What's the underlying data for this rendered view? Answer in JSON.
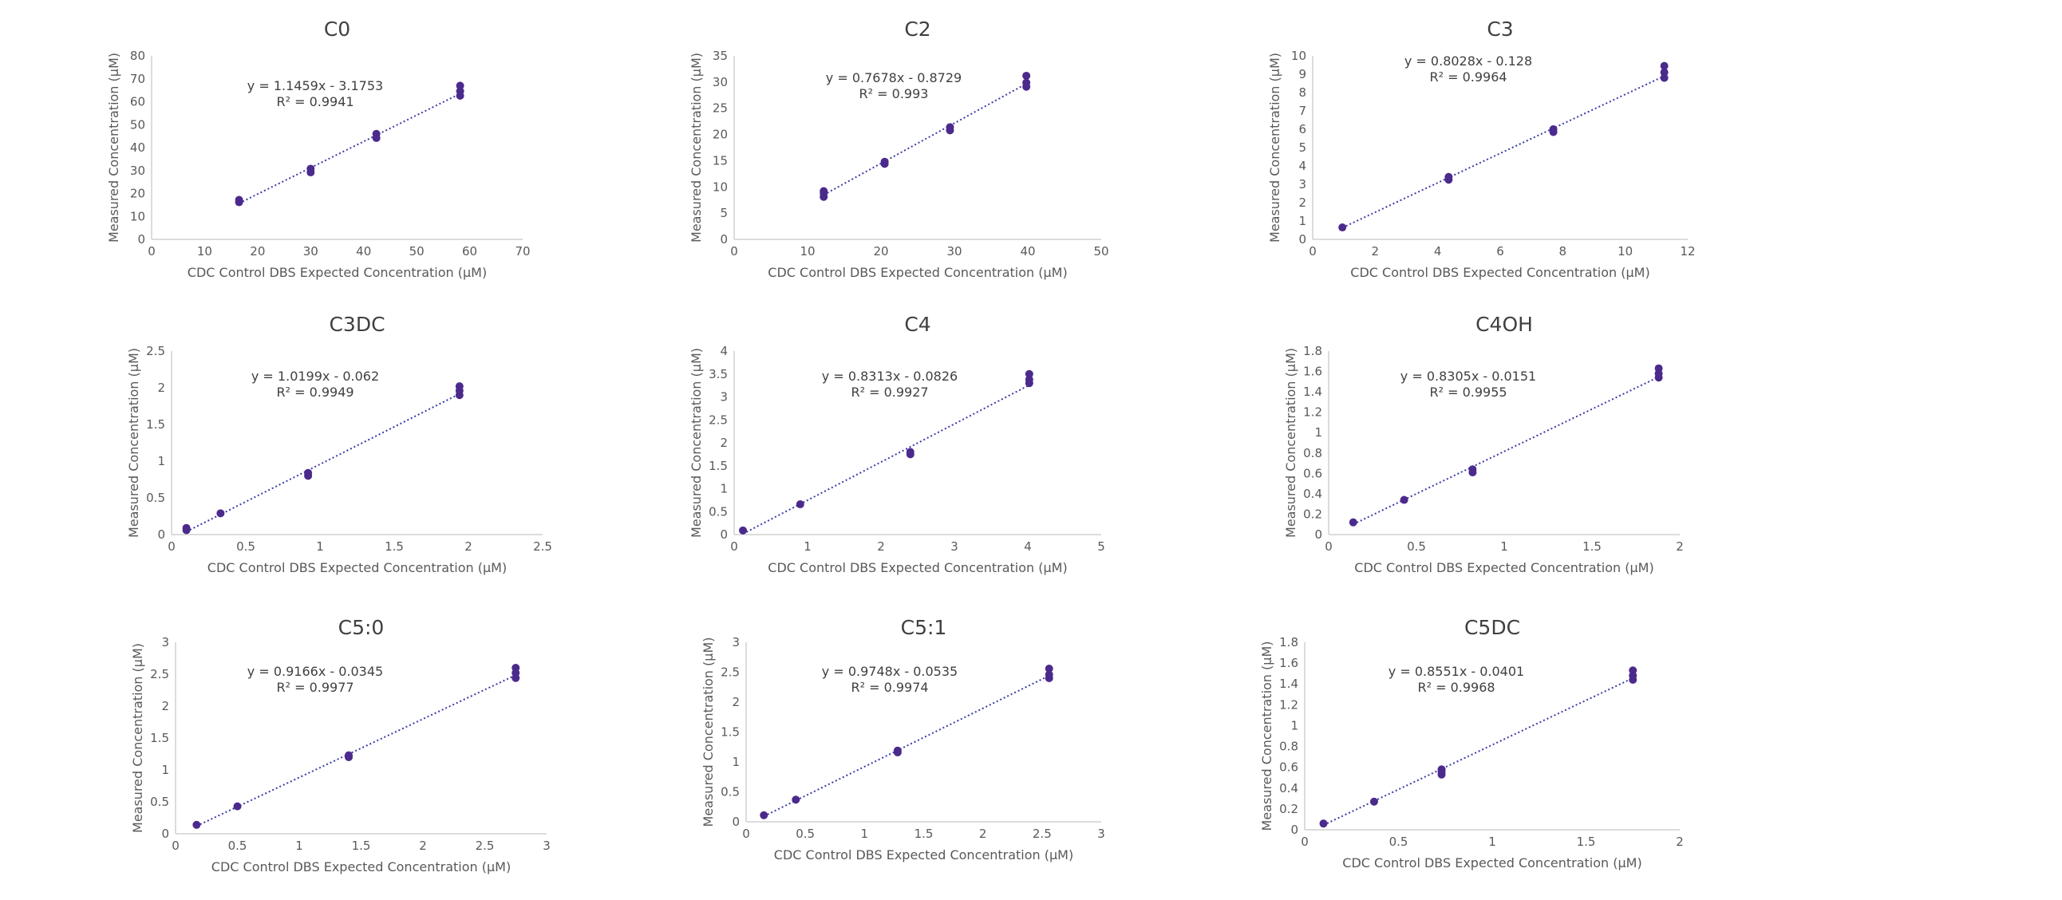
{
  "chart_data": [
    {
      "type": "scatter",
      "title": "C0",
      "xlabel": "CDC Control DBS Expected Concentration (µM)",
      "ylabel": "Measured Concentration (µM)",
      "xlim": [
        0,
        70
      ],
      "ylim": [
        0,
        80
      ],
      "xticks": [
        "0",
        "10",
        "20",
        "30",
        "40",
        "50",
        "60",
        "70"
      ],
      "yticks": [
        "0",
        "10",
        "20",
        "30",
        "40",
        "50",
        "60",
        "70",
        "80"
      ],
      "series": [
        {
          "x": [
            16.5,
            16.5,
            30,
            30,
            42.4,
            42.4,
            58.2,
            58.2,
            58.2
          ],
          "y": [
            16.2,
            17.2,
            29.2,
            30.8,
            44.2,
            46.0,
            62.6,
            64.6,
            67.0
          ]
        }
      ],
      "trendline": {
        "slope": 1.1459,
        "intercept": -3.1753,
        "equation": "y = 1.1459x - 3.1753",
        "r2": "R² = 0.9941"
      },
      "grid": false,
      "legend": "none"
    },
    {
      "type": "scatter",
      "title": "C2",
      "xlabel": "CDC Control DBS Expected Concentration (µM)",
      "ylabel": "Measured Concentration (µM)",
      "xlim": [
        0,
        50
      ],
      "ylim": [
        0,
        35
      ],
      "xticks": [
        "0",
        "10",
        "20",
        "30",
        "40",
        "50"
      ],
      "yticks": [
        "0",
        "5",
        "10",
        "15",
        "20",
        "25",
        "30",
        "35"
      ],
      "series": [
        {
          "x": [
            12.2,
            12.2,
            12.2,
            20.5,
            20.5,
            29.4,
            29.4,
            39.8,
            39.8,
            39.8
          ],
          "y": [
            8.1,
            8.8,
            9.2,
            14.4,
            14.8,
            20.8,
            21.4,
            29.1,
            29.9,
            31.2
          ]
        }
      ],
      "trendline": {
        "slope": 0.7678,
        "intercept": -0.8729,
        "equation": "y = 0.7678x - 0.8729",
        "r2": "R² = 0.993"
      },
      "grid": false,
      "legend": "none"
    },
    {
      "type": "scatter",
      "title": "C3",
      "xlabel": "CDC Control DBS Expected Concentration (µM)",
      "ylabel": "Measured Concentration (µM)",
      "xlim": [
        0,
        12
      ],
      "ylim": [
        0,
        10
      ],
      "xticks": [
        "0",
        "2",
        "4",
        "6",
        "8",
        "10",
        "12"
      ],
      "yticks": [
        "0",
        "1",
        "2",
        "3",
        "4",
        "5",
        "6",
        "7",
        "8",
        "9",
        "10"
      ],
      "series": [
        {
          "x": [
            0.95,
            4.35,
            4.35,
            7.7,
            7.7,
            11.25,
            11.25,
            11.25
          ],
          "y": [
            0.65,
            3.25,
            3.4,
            5.85,
            6.0,
            8.8,
            9.1,
            9.45
          ]
        }
      ],
      "trendline": {
        "slope": 0.8028,
        "intercept": -0.128,
        "equation": "y = 0.8028x - 0.128",
        "r2": "R² = 0.9964"
      },
      "grid": false,
      "legend": "none"
    },
    {
      "type": "scatter",
      "title": "C3DC",
      "xlabel": "CDC Control DBS Expected Concentration (µM)",
      "ylabel": "Measured Concentration (µM)",
      "xlim": [
        0,
        2.5
      ],
      "ylim": [
        0,
        2.5
      ],
      "xticks": [
        "0",
        "0.5",
        "1",
        "1.5",
        "2",
        "2.5"
      ],
      "yticks": [
        "0",
        "0.5",
        "1",
        "1.5",
        "2",
        "2.5"
      ],
      "series": [
        {
          "x": [
            0.1,
            0.1,
            0.33,
            0.92,
            0.92,
            1.94,
            1.94,
            1.94
          ],
          "y": [
            0.06,
            0.09,
            0.29,
            0.8,
            0.84,
            1.9,
            1.96,
            2.02
          ]
        }
      ],
      "trendline": {
        "slope": 1.0199,
        "intercept": -0.062,
        "equation": "y = 1.0199x - 0.062",
        "r2": "R² = 0.9949"
      },
      "grid": false,
      "legend": "none"
    },
    {
      "type": "scatter",
      "title": "C4",
      "xlabel": "CDC Control DBS Expected Concentration (µM)",
      "ylabel": "Measured Concentration (µM)",
      "xlim": [
        0,
        5
      ],
      "ylim": [
        0,
        4
      ],
      "xticks": [
        "0",
        "1",
        "2",
        "3",
        "4",
        "5"
      ],
      "yticks": [
        "0",
        "0.5",
        "1",
        "1.5",
        "2",
        "2.5",
        "3",
        "3.5",
        "4"
      ],
      "series": [
        {
          "x": [
            0.12,
            0.9,
            2.4,
            2.4,
            4.02,
            4.02,
            4.02
          ],
          "y": [
            0.09,
            0.66,
            1.75,
            1.8,
            3.3,
            3.38,
            3.5
          ]
        }
      ],
      "trendline": {
        "slope": 0.8313,
        "intercept": -0.0826,
        "equation": "y = 0.8313x - 0.0826",
        "r2": "R² = 0.9927"
      },
      "grid": false,
      "legend": "none"
    },
    {
      "type": "scatter",
      "title": "C4OH",
      "xlabel": "CDC Control DBS Expected Concentration (µM)",
      "ylabel": "Measured Concentration (µM)",
      "xlim": [
        0,
        2
      ],
      "ylim": [
        0,
        1.8
      ],
      "xticks": [
        "0",
        "0.5",
        "1",
        "1.5",
        "2"
      ],
      "yticks": [
        "0",
        "0.2",
        "0.4",
        "0.6",
        "0.8",
        "1",
        "1.2",
        "1.4",
        "1.6",
        "1.8"
      ],
      "series": [
        {
          "x": [
            0.14,
            0.43,
            0.82,
            0.82,
            1.88,
            1.88,
            1.88
          ],
          "y": [
            0.12,
            0.34,
            0.61,
            0.64,
            1.54,
            1.58,
            1.63
          ]
        }
      ],
      "trendline": {
        "slope": 0.8305,
        "intercept": -0.0151,
        "equation": "y = 0.8305x - 0.0151",
        "r2": "R² = 0.9955"
      },
      "grid": false,
      "legend": "none"
    },
    {
      "type": "scatter",
      "title": "C5:0",
      "xlabel": "CDC Control DBS Expected Concentration (µM)",
      "ylabel": "Measured Concentration (µM)",
      "xlim": [
        0,
        3
      ],
      "ylim": [
        0,
        3
      ],
      "xticks": [
        "0",
        "0.5",
        "1",
        "1.5",
        "2",
        "2.5",
        "3"
      ],
      "yticks": [
        "0",
        "0.5",
        "1",
        "1.5",
        "2",
        "2.5",
        "3"
      ],
      "series": [
        {
          "x": [
            0.17,
            0.5,
            1.4,
            1.4,
            2.75,
            2.75,
            2.75
          ],
          "y": [
            0.14,
            0.43,
            1.2,
            1.23,
            2.44,
            2.52,
            2.6
          ]
        }
      ],
      "trendline": {
        "slope": 0.9166,
        "intercept": -0.0345,
        "equation": "y = 0.9166x - 0.0345",
        "r2": "R² = 0.9977"
      },
      "grid": false,
      "legend": "none"
    },
    {
      "type": "scatter",
      "title": "C5:1",
      "xlabel": "CDC Control DBS Expected Concentration (µM)",
      "ylabel": "Measured Concentration (µM)",
      "xlim": [
        0,
        3
      ],
      "ylim": [
        0,
        3
      ],
      "xticks": [
        "0",
        "0.5",
        "1",
        "1.5",
        "2",
        "2.5",
        "3"
      ],
      "yticks": [
        "0",
        "0.5",
        "1",
        "1.5",
        "2",
        "2.5",
        "3"
      ],
      "series": [
        {
          "x": [
            0.15,
            0.42,
            1.28,
            1.28,
            2.56,
            2.56,
            2.56
          ],
          "y": [
            0.11,
            0.37,
            1.16,
            1.19,
            2.4,
            2.46,
            2.56
          ]
        }
      ],
      "trendline": {
        "slope": 0.9748,
        "intercept": -0.0535,
        "equation": "y = 0.9748x - 0.0535",
        "r2": "R² = 0.9974"
      },
      "grid": false,
      "legend": "none"
    },
    {
      "type": "scatter",
      "title": "C5DC",
      "xlabel": "CDC Control DBS Expected Concentration (µM)",
      "ylabel": "Measured Concentration (µM)",
      "xlim": [
        0,
        2
      ],
      "ylim": [
        0,
        1.8
      ],
      "xticks": [
        "0",
        "0.5",
        "1",
        "1.5",
        "2"
      ],
      "yticks": [
        "0",
        "0.2",
        "0.4",
        "0.6",
        "0.8",
        "1",
        "1.2",
        "1.4",
        "1.6",
        "1.8"
      ],
      "series": [
        {
          "x": [
            0.1,
            0.37,
            0.73,
            0.73,
            0.73,
            1.75,
            1.75,
            1.75
          ],
          "y": [
            0.06,
            0.27,
            0.53,
            0.56,
            0.58,
            1.44,
            1.48,
            1.53
          ]
        }
      ],
      "trendline": {
        "slope": 0.8551,
        "intercept": -0.0401,
        "equation": "y = 0.8551x - 0.0401",
        "r2": "R² = 0.9968"
      },
      "grid": false,
      "legend": "none"
    }
  ]
}
